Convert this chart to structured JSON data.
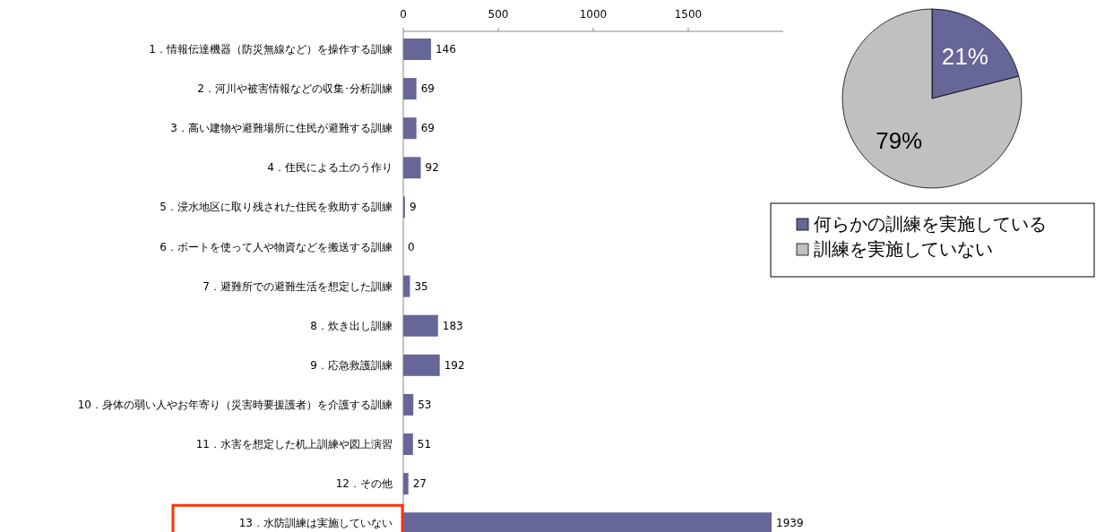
{
  "chart_data": [
    {
      "type": "bar",
      "orientation": "horizontal",
      "categories": [
        "1．情報伝達機器（防災無線など）を操作する訓練",
        "2．河川や被害情報などの収集･分析訓練",
        "3．高い建物や避難場所に住民が避難する訓練",
        "4．住民による土のう作り",
        "5．浸水地区に取り残された住民を救助する訓練",
        "6．ボートを使って人や物資などを搬送する訓練",
        "7．避難所での避難生活を想定した訓練",
        "8．炊き出し訓練",
        "9．応急救護訓練",
        "10．身体の弱い人やお年寄り（災害時要援護者）を介護する訓練",
        "11．水害を想定した机上訓練や図上演習",
        "12．その他",
        "13．水防訓練は実施していない"
      ],
      "values": [
        146,
        69,
        69,
        92,
        9,
        0,
        35,
        183,
        192,
        53,
        51,
        27,
        1939
      ],
      "color": "#666699",
      "xlim": [
        0,
        2000
      ],
      "xticks": [
        0,
        500,
        1000,
        1500
      ],
      "data_labels": true
    },
    {
      "type": "pie",
      "categories": [
        "何らかの訓練を実施している",
        "訓練を実施していない"
      ],
      "values": [
        21,
        79
      ],
      "value_labels": [
        "21%",
        "79%"
      ],
      "colors": [
        "#666699",
        "#c0c0c0"
      ],
      "legend": "bottom"
    }
  ]
}
